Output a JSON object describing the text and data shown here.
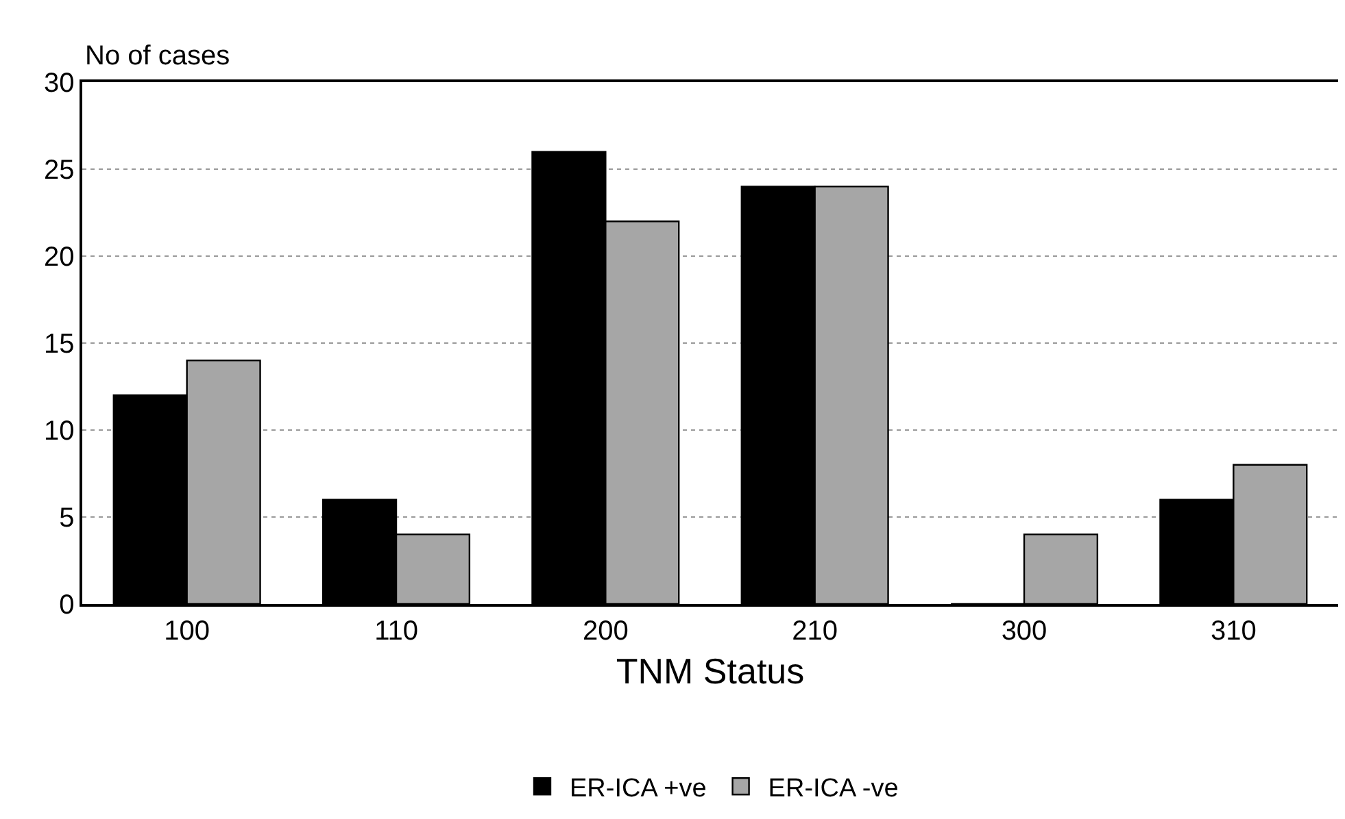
{
  "chart_data": {
    "type": "bar",
    "xlabel": "TNM Status",
    "ylabel": "No of cases",
    "categories": [
      "100",
      "110",
      "200",
      "210",
      "300",
      "310"
    ],
    "series": [
      {
        "name": "ER-ICA +ve",
        "color": "#000000",
        "values": [
          12,
          6,
          26,
          24,
          0,
          6
        ]
      },
      {
        "name": "ER-ICA -ve",
        "color": "#a6a6a6",
        "values": [
          14,
          4,
          22,
          24,
          4,
          8
        ]
      }
    ],
    "ylim": [
      0,
      30
    ],
    "yticks": [
      0,
      5,
      10,
      15,
      20,
      25,
      30
    ],
    "grid": "y",
    "legend": "bottom"
  }
}
